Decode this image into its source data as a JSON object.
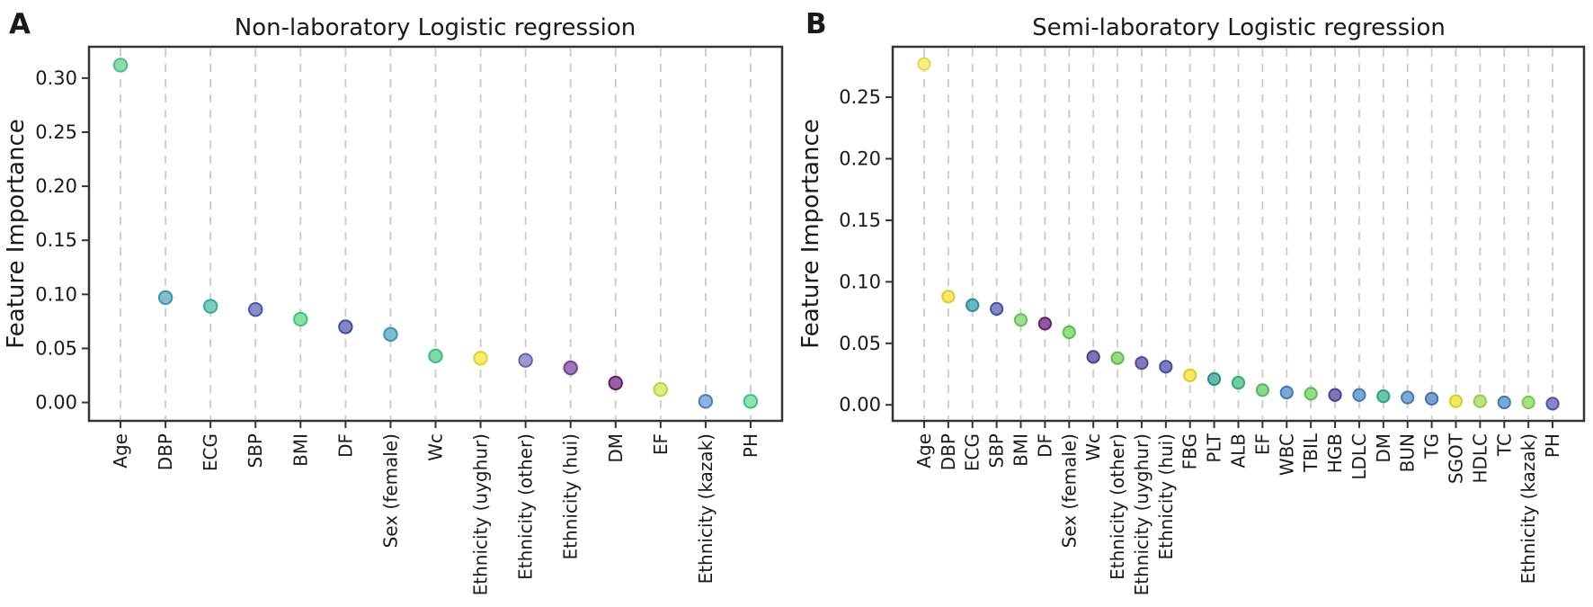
{
  "figure": {
    "background": "#ffffff",
    "grid_color": "#c9c9c9",
    "spine_color": "#333333",
    "text_color": "#1a1a1a"
  },
  "chart_data": [
    {
      "type": "scatter",
      "panel_letter": "A",
      "title": "Non-laboratory Logistic regression",
      "ylabel": "Feature Importance",
      "xlabel": "",
      "ylim": [
        -0.017,
        0.329
      ],
      "yticks": [
        0.0,
        0.05,
        0.1,
        0.15,
        0.2,
        0.25,
        0.3
      ],
      "grid": "vertical-dashed",
      "categories": [
        "Age",
        "DBP",
        "ECG",
        "SBP",
        "BMI",
        "DF",
        "Sex (female)",
        "Wc",
        "Ethnicity (uyghur)",
        "Ethnicity (other)",
        "Ethnicity (hui)",
        "DM",
        "EF",
        "Ethnicity (kazak)",
        "PH"
      ],
      "values": [
        0.312,
        0.097,
        0.089,
        0.086,
        0.077,
        0.07,
        0.063,
        0.043,
        0.041,
        0.039,
        0.032,
        0.018,
        0.012,
        0.001,
        0.001
      ],
      "point_colors": [
        "#8FD9AC",
        "#85BDC8",
        "#7ECABE",
        "#8A8EC6",
        "#87DFA9",
        "#8287C3",
        "#80BACE",
        "#7FD9A5",
        "#F5ED6B",
        "#9E99CD",
        "#9B79B8",
        "#9760A4",
        "#DDED85",
        "#8FB3D9",
        "#8FE3B2"
      ],
      "point_edge_colors": [
        "#4DBD83",
        "#3E96AA",
        "#38A795",
        "#4B55A6",
        "#44C377",
        "#404FA0",
        "#3C93B1",
        "#42BC78",
        "#DCD32F",
        "#6C64AD",
        "#6F4496",
        "#5D2466",
        "#B9D234",
        "#4A7FB5",
        "#3FBF7D"
      ]
    },
    {
      "type": "scatter",
      "panel_letter": "B",
      "title": "Semi-laboratory Logistic regression",
      "ylabel": "Feature Importance",
      "xlabel": "",
      "ylim": [
        -0.013,
        0.291
      ],
      "yticks": [
        0.0,
        0.05,
        0.1,
        0.15,
        0.2,
        0.25
      ],
      "grid": "vertical-dashed",
      "categories": [
        "Age",
        "DBP",
        "ECG",
        "SBP",
        "BMI",
        "DF",
        "Sex (female)",
        "Wc",
        "Ethnicity (other)",
        "Ethnicity (uyghur)",
        "Ethnicity (hui)",
        "FBG",
        "PLT",
        "ALB",
        "EF",
        "WBC",
        "TBIL",
        "HGB",
        "LDLC",
        "DM",
        "BUN",
        "TG",
        "SGOT",
        "HDLC",
        "TC",
        "Ethnicity (kazak)",
        "PH"
      ],
      "values": [
        0.277,
        0.088,
        0.081,
        0.078,
        0.069,
        0.066,
        0.059,
        0.039,
        0.038,
        0.034,
        0.031,
        0.024,
        0.021,
        0.018,
        0.012,
        0.01,
        0.009,
        0.008,
        0.008,
        0.007,
        0.006,
        0.005,
        0.003,
        0.003,
        0.002,
        0.002,
        0.001
      ],
      "point_colors": [
        "#F8F07E",
        "#F4E96B",
        "#6DB4BD",
        "#8289C5",
        "#9FDC8D",
        "#9157A0",
        "#99DA85",
        "#8071B5",
        "#98DA82",
        "#8478BB",
        "#7D7CBD",
        "#F4EA64",
        "#64B8AE",
        "#6FCD9F",
        "#8ED689",
        "#7EA6D3",
        "#99DA85",
        "#8173B6",
        "#7EA4D2",
        "#66C7AB",
        "#7FA7D4",
        "#7E9ED0",
        "#F2EA60",
        "#BCE381",
        "#7EA6D3",
        "#A8E082",
        "#8287C4"
      ],
      "point_edge_colors": [
        "#E8D44F",
        "#D9C832",
        "#2D8A9B",
        "#4353A4",
        "#64C155",
        "#642069",
        "#5CBD50",
        "#4B3F8F",
        "#5CBD50",
        "#4C4A9C",
        "#44509F",
        "#D9C832",
        "#2A9184",
        "#36A873",
        "#54B858",
        "#4479B3",
        "#5CBD50",
        "#4A4192",
        "#4479B3",
        "#2F9F80",
        "#4479B3",
        "#4470AE",
        "#D6C92E",
        "#97CC44",
        "#4479B3",
        "#77C94E",
        "#4A57A6"
      ]
    }
  ]
}
